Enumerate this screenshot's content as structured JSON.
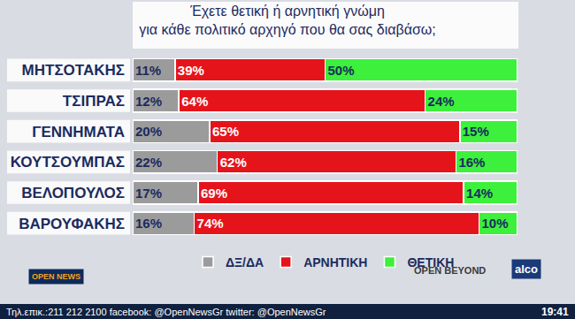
{
  "chart_data": {
    "type": "bar",
    "title": "Έχετε θετική ή αρνητική γνώμη\nγια κάθε πολιτικό αρχηγό που θα σας διαβάσω;",
    "orientation": "horizontal",
    "stacked": true,
    "data_labels": true,
    "tick_labels": "y",
    "legend": "bottom",
    "grid": false,
    "xlim": [
      0,
      100
    ],
    "categories": [
      "ΜΗΤΣΟΤΑΚΗΣ",
      "ΤΣΙΠΡΑΣ",
      "ΓΕΝΝΗΜΑΤΑ",
      "ΚΟΥΤΣΟΥΜΠΑΣ",
      "ΒΕΛΟΠΟΥΛΟΣ",
      "ΒΑΡΟΥΦΑΚΗΣ"
    ],
    "series": [
      {
        "name": "ΔΞ/ΔΑ",
        "color": "#9b9b9b",
        "values": [
          11,
          12,
          20,
          22,
          17,
          16
        ],
        "value_labels": [
          "11%",
          "12%",
          "20%",
          "22%",
          "17%",
          "16%"
        ]
      },
      {
        "name": "ΑΡΝΗΤΙΚΗ",
        "color": "#e5141b",
        "values": [
          39,
          64,
          65,
          62,
          69,
          74
        ],
        "value_labels": [
          "39%",
          "64%",
          "65%",
          "62%",
          "69%",
          "74%"
        ]
      },
      {
        "name": "ΘΕΤΙΚΗ",
        "color": "#3cf03c",
        "values": [
          50,
          24,
          15,
          16,
          14,
          10
        ],
        "value_labels": [
          "50%",
          "24%",
          "15%",
          "16%",
          "14%",
          "10%"
        ]
      }
    ]
  },
  "logos": [
    "OPEN NEWS",
    "OPEN BEYOND",
    "alco"
  ],
  "footer": {
    "text": "Τηλ.επικ.:211 212 2100 facebook: @OpenNewsGr twitter: @OpenNewsGr",
    "time": "19:41"
  }
}
